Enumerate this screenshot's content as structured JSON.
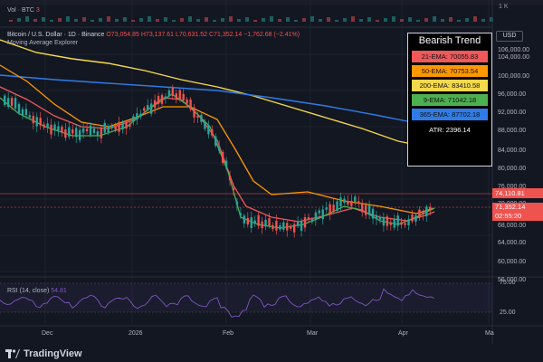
{
  "header": {
    "volume_label": "Vol · BTC",
    "volume_value": "3",
    "volume_axis_label": "1 K",
    "symbol": "Bitcoin / U.S. Dollar · 1D · Binance",
    "open": "O73,054.85",
    "high": "H73,137.61",
    "low": "L70,631.52",
    "close": "C71,352.14",
    "change": "−1,762.68 (−2.41%)",
    "indicator": "Moving Average Explorer",
    "currency": "USD"
  },
  "price_axis": [
    "106,000.00",
    "104,000.00",
    "100,000.00",
    "96,000.00",
    "92,000.00",
    "88,000.00",
    "84,000.00",
    "80,000.00",
    "76,000.00",
    "70,000.00",
    "68,000.00",
    "64,000.00",
    "60,000.00",
    "56,000.00"
  ],
  "legend": {
    "title": "Bearish Trend",
    "rows": [
      {
        "label": "21-EMA: 70055.83",
        "color": "#f0585a"
      },
      {
        "label": "50-EMA: 70753.54",
        "color": "#ff9800"
      },
      {
        "label": "200-EMA: 83410.58",
        "color": "#f5d94c"
      },
      {
        "label": "9-EMA: 71042.18",
        "color": "#4caf50"
      },
      {
        "label": "365-EMA: 87702.18",
        "color": "#2f7ce8"
      }
    ],
    "atr": "ATR: 2396.14"
  },
  "price_tags": {
    "current": "74,110.81",
    "close": "71,352.14",
    "countdown": "02:55:20"
  },
  "rsi": {
    "label": "RSI (14, close)",
    "value": "54.81",
    "axis": [
      "75.00",
      "25.00"
    ]
  },
  "time_axis": [
    "Dec",
    "2026",
    "Feb",
    "Mar",
    "Apr",
    "Ma"
  ],
  "footer": {
    "brand": "TradingView"
  },
  "colors": {
    "up": "#26a69a",
    "down": "#ef5350",
    "ema21": "#f0585a",
    "ema50": "#ff9800",
    "ema200": "#f5d94c",
    "ema9": "#4caf50",
    "ema365": "#2f7ce8",
    "rsi": "#7e57c2"
  }
}
